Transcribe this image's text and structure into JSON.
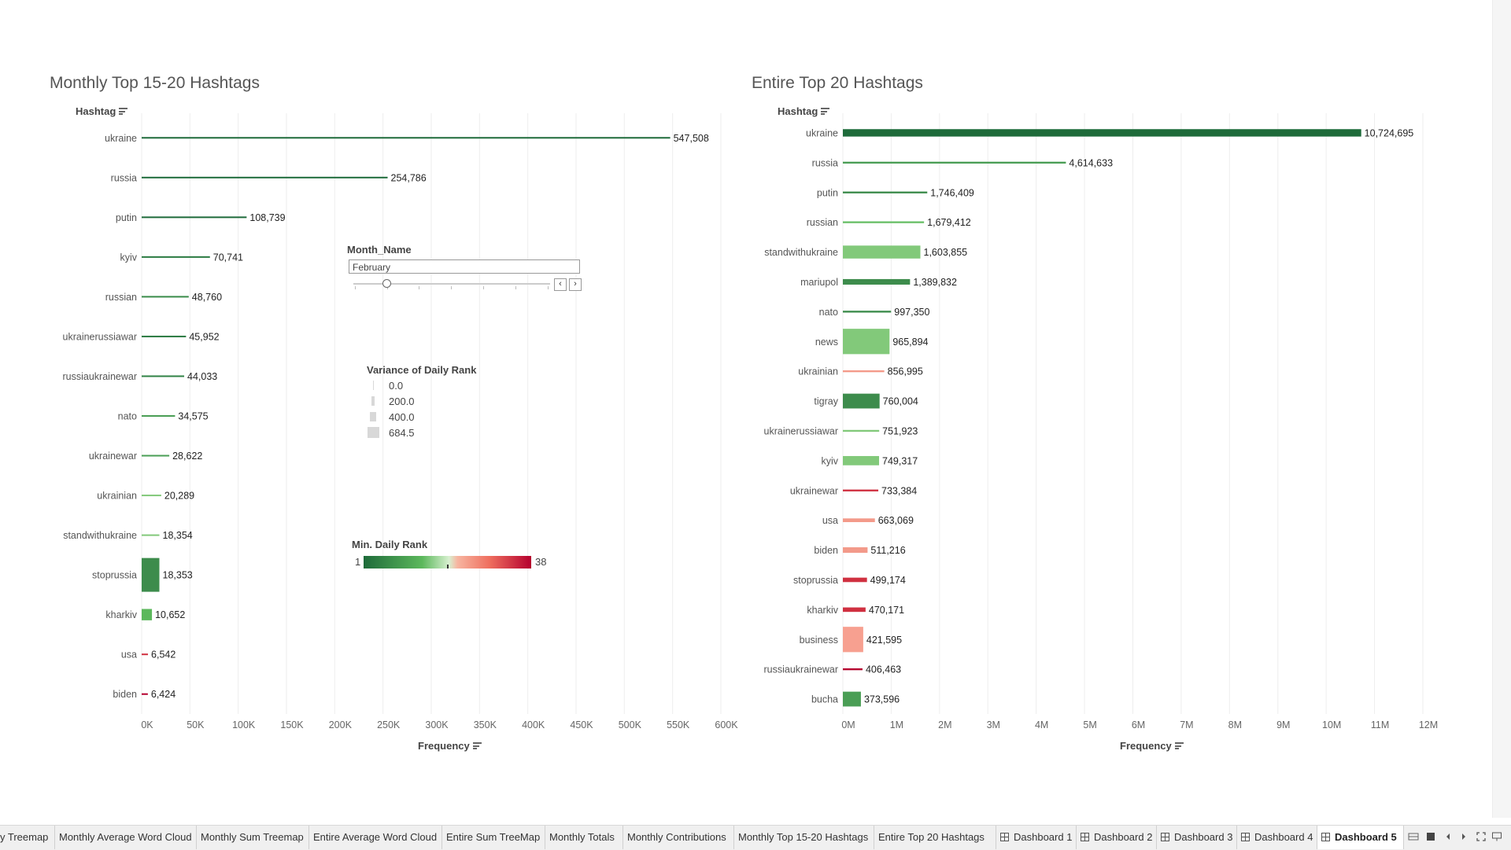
{
  "left_chart": {
    "title": "Monthly Top 15-20 Hashtags",
    "y_field": "Hashtag",
    "x_field": "Frequency"
  },
  "right_chart": {
    "title": "Entire Top 20 Hashtags",
    "y_field": "Hashtag",
    "x_field": "Frequency"
  },
  "month_filter": {
    "title": "Month_Name",
    "value": "February",
    "prev_icon": "chevron-left-icon",
    "next_icon": "chevron-right-icon"
  },
  "size_legend": {
    "title": "Variance of Daily Rank",
    "items": [
      "0.0",
      "200.0",
      "400.0",
      "684.5"
    ]
  },
  "color_legend": {
    "title": "Min. Daily Rank",
    "min": "1",
    "max": "38",
    "colors": [
      "#1e6b3a",
      "#5cb85c",
      "#d8f0d0",
      "#f7b5a0",
      "#ef6f5f",
      "#b5002e"
    ]
  },
  "chart_data": [
    {
      "type": "bar",
      "title": "Monthly Top 15-20 Hashtags",
      "ylabel": "Hashtag",
      "xlabel": "Frequency",
      "xlim": [
        0,
        600000
      ],
      "x_ticks": [
        "0K",
        "50K",
        "100K",
        "150K",
        "200K",
        "250K",
        "300K",
        "350K",
        "400K",
        "450K",
        "500K",
        "550K",
        "600K"
      ],
      "grid": true,
      "categories": [
        "ukraine",
        "russia",
        "putin",
        "kyiv",
        "russian",
        "ukrainerussiawar",
        "russiaukrainewar",
        "nato",
        "ukrainewar",
        "ukrainian",
        "standwithukraine",
        "stoprussia",
        "kharkiv",
        "usa",
        "biden"
      ],
      "values": [
        547508,
        254786,
        108739,
        70741,
        48760,
        45952,
        44033,
        34575,
        28622,
        20289,
        18354,
        18353,
        10652,
        6542,
        6424
      ],
      "labels": [
        "547,508",
        "254,786",
        "108,739",
        "70,741",
        "48,760",
        "45,952",
        "44,033",
        "34,575",
        "28,622",
        "20,289",
        "18,354",
        "18,353",
        "10,652",
        "6,542",
        "6,424"
      ],
      "size_variance": [
        0,
        0,
        0,
        0,
        0,
        0,
        0,
        0,
        0,
        0,
        0,
        684.5,
        230,
        0,
        0
      ],
      "colors": [
        "#1e6b3a",
        "#1e6b3a",
        "#1e6b3a",
        "#2a7a41",
        "#3a8c4a",
        "#2a7a41",
        "#2f8245",
        "#4a9e55",
        "#4a9e55",
        "#82c97a",
        "#82c97a",
        "#3d8c4c",
        "#5cb85c",
        "#d03040",
        "#b5002e"
      ]
    },
    {
      "type": "bar",
      "title": "Entire Top 20 Hashtags",
      "ylabel": "Hashtag",
      "xlabel": "Frequency",
      "xlim": [
        0,
        12000000
      ],
      "x_ticks": [
        "0M",
        "1M",
        "2M",
        "3M",
        "4M",
        "5M",
        "6M",
        "7M",
        "8M",
        "9M",
        "10M",
        "11M",
        "12M"
      ],
      "grid": true,
      "categories": [
        "ukraine",
        "russia",
        "putin",
        "russian",
        "standwithukraine",
        "mariupol",
        "nato",
        "news",
        "ukrainian",
        "tigray",
        "ukrainerussiawar",
        "kyiv",
        "ukrainewar",
        "usa",
        "biden",
        "stoprussia",
        "kharkiv",
        "business",
        "russiaukrainewar",
        "bucha"
      ],
      "values": [
        10724695,
        4614633,
        1746409,
        1679412,
        1603855,
        1389832,
        997350,
        965894,
        856995,
        760004,
        751923,
        749317,
        733384,
        663069,
        511216,
        499174,
        470171,
        421595,
        406463,
        373596
      ],
      "labels": [
        "10,724,695",
        "4,614,633",
        "1,746,409",
        "1,679,412",
        "1,603,855",
        "1,389,832",
        "997,350",
        "965,894",
        "856,995",
        "760,004",
        "751,923",
        "749,317",
        "733,384",
        "663,069",
        "511,216",
        "499,174",
        "470,171",
        "421,595",
        "406,463",
        "373,596"
      ],
      "size_variance": [
        200,
        50,
        50,
        50,
        350,
        150,
        50,
        684.5,
        50,
        400,
        50,
        250,
        50,
        100,
        150,
        120,
        120,
        684.5,
        50,
        400
      ],
      "colors": [
        "#1e6b3a",
        "#4a9e55",
        "#3d8c4c",
        "#6abf69",
        "#82c97a",
        "#3d8c4c",
        "#3d8c4c",
        "#82c97a",
        "#f39a8a",
        "#3d8c4c",
        "#82c97a",
        "#82c97a",
        "#d03040",
        "#f39a8a",
        "#f39a8a",
        "#d03040",
        "#d03040",
        "#f7a090",
        "#b5002e",
        "#4a9e55"
      ]
    }
  ],
  "tabs": [
    {
      "label": "y Treemap",
      "dashboard": false
    },
    {
      "label": "Monthly Average Word Cloud",
      "dashboard": false
    },
    {
      "label": "Monthly Sum Treemap",
      "dashboard": false
    },
    {
      "label": "Entire Average Word Cloud",
      "dashboard": false
    },
    {
      "label": "Entire Sum TreeMap",
      "dashboard": false
    },
    {
      "label": "Monthly Totals",
      "dashboard": false
    },
    {
      "label": "Monthly Contributions",
      "dashboard": false
    },
    {
      "label": "Monthly Top 15-20 Hashtags",
      "dashboard": false
    },
    {
      "label": "Entire Top 20 Hashtags",
      "dashboard": false
    },
    {
      "label": "Dashboard 1",
      "dashboard": true
    },
    {
      "label": "Dashboard 2",
      "dashboard": true
    },
    {
      "label": "Dashboard 3",
      "dashboard": true
    },
    {
      "label": "Dashboard 4",
      "dashboard": true
    },
    {
      "label": "Dashboard 5",
      "dashboard": true,
      "active": true
    }
  ],
  "bottom_controls": [
    "grid-view-icon",
    "filmstrip-view-icon",
    "previous-sheet-icon",
    "next-sheet-icon",
    "fullscreen-icon",
    "presentation-icon"
  ]
}
